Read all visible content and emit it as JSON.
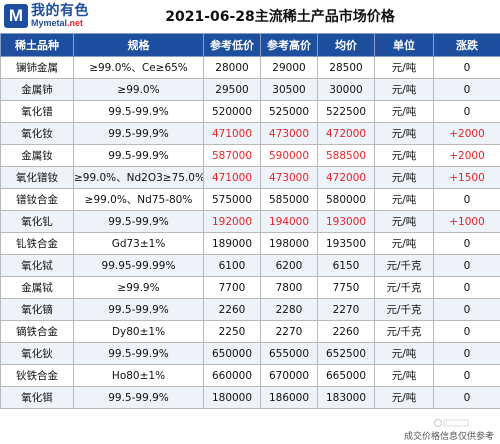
{
  "header": {
    "logo_cn": "我的有色",
    "logo_en_main": "Mymetal",
    "logo_en_suffix": ".net",
    "title": "2021-06-28主流稀土产品市场价格"
  },
  "table": {
    "columns": [
      "稀土品种",
      "规格",
      "参考低价",
      "参考高价",
      "均价",
      "单位",
      "涨跌"
    ],
    "rows": [
      {
        "name": "镧铈金属",
        "spec": "≥99.0%、Ce≥65%",
        "low": "28000",
        "high": "29000",
        "avg": "28500",
        "unit": "元/吨",
        "change": "0",
        "up": false
      },
      {
        "name": "金属铈",
        "spec": "≥99.0%",
        "low": "29500",
        "high": "30500",
        "avg": "30000",
        "unit": "元/吨",
        "change": "0",
        "up": false
      },
      {
        "name": "氧化镨",
        "spec": "99.5-99.9%",
        "low": "520000",
        "high": "525000",
        "avg": "522500",
        "unit": "元/吨",
        "change": "0",
        "up": false
      },
      {
        "name": "氧化钕",
        "spec": "99.5-99.9%",
        "low": "471000",
        "high": "473000",
        "avg": "472000",
        "unit": "元/吨",
        "change": "+2000",
        "up": true
      },
      {
        "name": "金属钕",
        "spec": "99.5-99.9%",
        "low": "587000",
        "high": "590000",
        "avg": "588500",
        "unit": "元/吨",
        "change": "+2000",
        "up": true
      },
      {
        "name": "氧化镨钕",
        "spec": "≥99.0%、Nd2O3≥75.0%",
        "low": "471000",
        "high": "473000",
        "avg": "472000",
        "unit": "元/吨",
        "change": "+1500",
        "up": true
      },
      {
        "name": "镨钕合金",
        "spec": "≥99.0%、Nd75-80%",
        "low": "575000",
        "high": "585000",
        "avg": "580000",
        "unit": "元/吨",
        "change": "0",
        "up": false
      },
      {
        "name": "氧化钆",
        "spec": "99.5-99.9%",
        "low": "192000",
        "high": "194000",
        "avg": "193000",
        "unit": "元/吨",
        "change": "+1000",
        "up": true
      },
      {
        "name": "钆铁合金",
        "spec": "Gd73±1%",
        "low": "189000",
        "high": "198000",
        "avg": "193500",
        "unit": "元/吨",
        "change": "0",
        "up": false
      },
      {
        "name": "氧化铽",
        "spec": "99.95-99.99%",
        "low": "6100",
        "high": "6200",
        "avg": "6150",
        "unit": "元/千克",
        "change": "0",
        "up": false
      },
      {
        "name": "金属铽",
        "spec": "≥99.9%",
        "low": "7700",
        "high": "7800",
        "avg": "7750",
        "unit": "元/千克",
        "change": "0",
        "up": false
      },
      {
        "name": "氧化镝",
        "spec": "99.5-99.9%",
        "low": "2260",
        "high": "2280",
        "avg": "2270",
        "unit": "元/千克",
        "change": "0",
        "up": false
      },
      {
        "name": "镝铁合金",
        "spec": "Dy80±1%",
        "low": "2250",
        "high": "2270",
        "avg": "2260",
        "unit": "元/千克",
        "change": "0",
        "up": false
      },
      {
        "name": "氧化钬",
        "spec": "99.5-99.9%",
        "low": "650000",
        "high": "655000",
        "avg": "652500",
        "unit": "元/吨",
        "change": "0",
        "up": false
      },
      {
        "name": "钬铁合金",
        "spec": "Ho80±1%",
        "low": "660000",
        "high": "670000",
        "avg": "665000",
        "unit": "元/吨",
        "change": "0",
        "up": false
      },
      {
        "name": "氧化铒",
        "spec": "99.5-99.9%",
        "low": "180000",
        "high": "186000",
        "avg": "183000",
        "unit": "元/吨",
        "change": "0",
        "up": false
      }
    ]
  },
  "footer": {
    "note": "成交价格信息仅供参考"
  },
  "colors": {
    "header_bg": "#1d4f9e",
    "up": "#e32626",
    "alt_row": "#eef2f9"
  }
}
